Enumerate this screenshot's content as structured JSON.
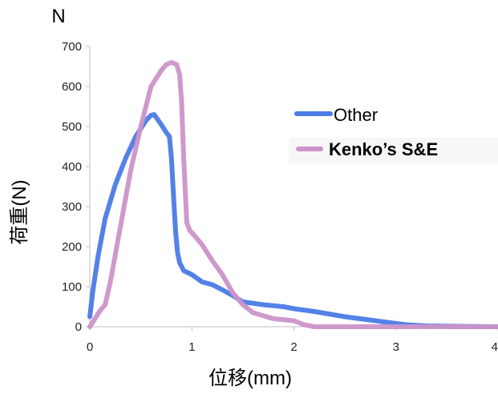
{
  "chart_data": {
    "type": "line",
    "title": "",
    "unit_label": "N",
    "xlabel": "位移(mm)",
    "ylabel": "荷重(N)",
    "xlim": [
      0,
      4
    ],
    "ylim": [
      0,
      700
    ],
    "x_ticks": [
      "0",
      "1",
      "2",
      "3",
      "4"
    ],
    "y_ticks": [
      "0",
      "100",
      "200",
      "300",
      "400",
      "500",
      "600",
      "700"
    ],
    "grid": false,
    "legend_position": "right",
    "series": [
      {
        "name": "Other",
        "color": "#4a7be6",
        "x": [
          0.0,
          0.03,
          0.08,
          0.15,
          0.25,
          0.35,
          0.45,
          0.55,
          0.6,
          0.63,
          0.7,
          0.75,
          0.78,
          0.8,
          0.82,
          0.84,
          0.86,
          0.88,
          0.92,
          1.0,
          1.1,
          1.2,
          1.3,
          1.4,
          1.5,
          1.7,
          1.9,
          2.0,
          2.2,
          2.5,
          2.8,
          3.0,
          3.1,
          3.3,
          3.6,
          4.0
        ],
        "y": [
          25,
          90,
          175,
          270,
          355,
          420,
          475,
          515,
          528,
          530,
          505,
          485,
          475,
          420,
          330,
          240,
          185,
          160,
          140,
          130,
          112,
          105,
          92,
          78,
          62,
          55,
          50,
          45,
          38,
          25,
          15,
          8,
          5,
          2,
          1,
          0
        ]
      },
      {
        "name": "Kenko’s S&E",
        "color": "#cc94c8",
        "x": [
          0.0,
          0.05,
          0.1,
          0.15,
          0.2,
          0.3,
          0.4,
          0.5,
          0.6,
          0.7,
          0.75,
          0.8,
          0.85,
          0.88,
          0.9,
          0.92,
          0.95,
          0.98,
          1.0,
          1.1,
          1.2,
          1.3,
          1.4,
          1.5,
          1.6,
          1.8,
          2.0,
          2.1,
          2.2,
          2.5,
          3.0,
          3.5,
          4.0
        ],
        "y": [
          0,
          20,
          40,
          55,
          110,
          250,
          390,
          500,
          600,
          640,
          655,
          660,
          655,
          630,
          560,
          420,
          260,
          240,
          235,
          205,
          165,
          130,
          85,
          55,
          35,
          20,
          15,
          5,
          0,
          0,
          0,
          0,
          0
        ]
      }
    ]
  }
}
